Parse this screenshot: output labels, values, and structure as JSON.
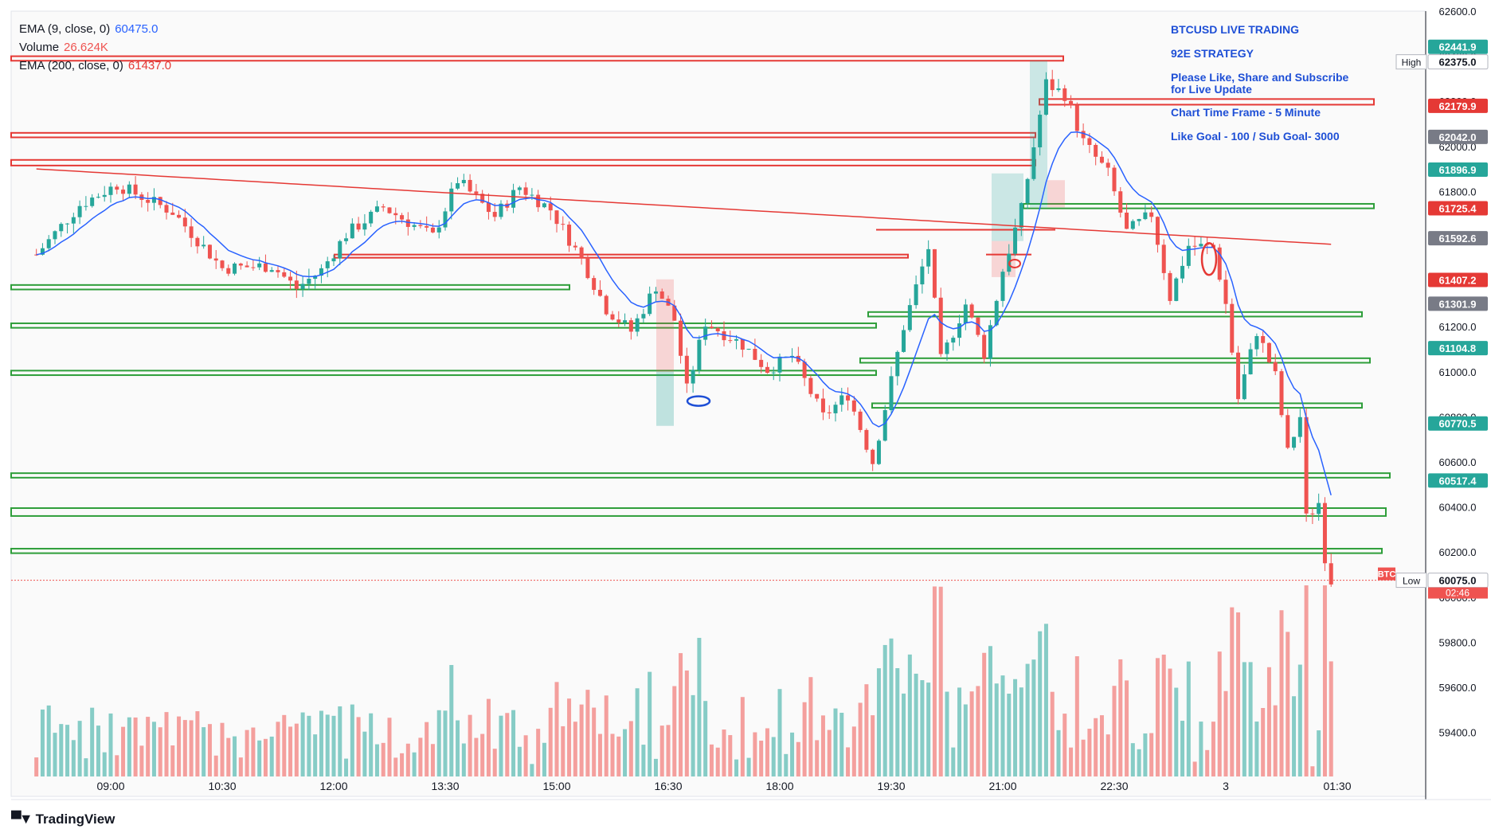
{
  "legend": {
    "ema9_label": "EMA (9, close, 0)",
    "ema9_value": "60475.0",
    "volume_label": "Volume",
    "volume_value": "26.624K",
    "ema200_label": "EMA (200, close, 0)",
    "ema200_value": "61437.0"
  },
  "overlay": {
    "line1": "BTCUSD LIVE TRADING",
    "line2": "92E  STRATEGY",
    "line3": "Please Like, Share and Subscribe",
    "line4": "for Live Update",
    "line5": "Chart Time Frame - 5 Minute",
    "line6": "Like Goal - 100 / Sub Goal- 3000"
  },
  "brand": {
    "name": "TradingView"
  },
  "colors": {
    "up": "#26a69a",
    "down": "#ef5350",
    "ema9": "#2962ff",
    "ema200": "#e53935",
    "zone_red": "#e53935",
    "zone_green": "#2e9e3a"
  },
  "chart_data": {
    "type": "candlestick",
    "symbol": "BTCUSD",
    "timeframe": "5 Minute",
    "x_ticks": [
      "09:00",
      "10:30",
      "12:00",
      "13:30",
      "15:00",
      "16:30",
      "18:00",
      "19:30",
      "21:00",
      "22:30",
      "3",
      "01:30"
    ],
    "y_ticks": [
      59400,
      59600,
      59800,
      60000,
      60200,
      60400,
      60600,
      60800,
      61000,
      61200,
      61400,
      61600,
      61800,
      62000,
      62200,
      62400,
      62600
    ],
    "ylim": [
      59240,
      62600
    ],
    "price_labels": [
      {
        "text": "62441.9",
        "price": 62441.9,
        "color": "#26a69a"
      },
      {
        "text": "62375.0",
        "price": 62375.0,
        "color": "#ffffff",
        "tag": "High"
      },
      {
        "text": "62179.9",
        "price": 62179.9,
        "color": "#e53935"
      },
      {
        "text": "62042.0",
        "price": 62042.0,
        "color": "#787b86"
      },
      {
        "text": "61896.9",
        "price": 61896.9,
        "color": "#26a69a"
      },
      {
        "text": "61725.4",
        "price": 61725.4,
        "color": "#e53935"
      },
      {
        "text": "61592.6",
        "price": 61592.6,
        "color": "#787b86"
      },
      {
        "text": "61407.2",
        "price": 61407.2,
        "color": "#e53935"
      },
      {
        "text": "61301.9",
        "price": 61301.9,
        "color": "#787b86"
      },
      {
        "text": "61104.8",
        "price": 61104.8,
        "color": "#26a69a"
      },
      {
        "text": "60770.5",
        "price": 60770.5,
        "color": "#26a69a"
      },
      {
        "text": "60517.4",
        "price": 60517.4,
        "color": "#26a69a"
      },
      {
        "text": "60075.0",
        "price": 60075.0,
        "color": "#ffffff",
        "tag": "Low"
      }
    ],
    "last_price_label": {
      "text": "BTC",
      "timer": "02:46",
      "price": 60075.0
    },
    "candles_ohlc_anchor": [
      {
        "t": "08:00",
        "p": 61520
      },
      {
        "t": "08:35",
        "p": 61740
      },
      {
        "t": "09:05",
        "p": 61830
      },
      {
        "t": "09:50",
        "p": 61710
      },
      {
        "t": "10:30",
        "p": 61460
      },
      {
        "t": "11:10",
        "p": 61470
      },
      {
        "t": "11:30",
        "p": 61370
      },
      {
        "t": "11:50",
        "p": 61450
      },
      {
        "t": "12:10",
        "p": 61610
      },
      {
        "t": "12:40",
        "p": 61730
      },
      {
        "t": "13:20",
        "p": 61600
      },
      {
        "t": "13:40",
        "p": 61850
      },
      {
        "t": "14:10",
        "p": 61690
      },
      {
        "t": "14:30",
        "p": 61820
      },
      {
        "t": "14:55",
        "p": 61720
      },
      {
        "t": "15:20",
        "p": 61500
      },
      {
        "t": "15:40",
        "p": 61280
      },
      {
        "t": "16:00",
        "p": 61180
      },
      {
        "t": "16:20",
        "p": 61380
      },
      {
        "t": "16:35",
        "p": 61230
      },
      {
        "t": "16:45",
        "p": 60920
      },
      {
        "t": "17:00",
        "p": 61220
      },
      {
        "t": "17:30",
        "p": 61120
      },
      {
        "t": "17:50",
        "p": 61010
      },
      {
        "t": "18:10",
        "p": 61070
      },
      {
        "t": "18:35",
        "p": 60800
      },
      {
        "t": "18:55",
        "p": 60900
      },
      {
        "t": "19:15",
        "p": 60600
      },
      {
        "t": "19:40",
        "p": 61200
      },
      {
        "t": "20:00",
        "p": 61550
      },
      {
        "t": "20:10",
        "p": 61050
      },
      {
        "t": "20:30",
        "p": 61300
      },
      {
        "t": "20:45",
        "p": 61080
      },
      {
        "t": "21:00",
        "p": 61450
      },
      {
        "t": "21:15",
        "p": 61720
      },
      {
        "t": "21:35",
        "p": 62280
      },
      {
        "t": "21:50",
        "p": 62230
      },
      {
        "t": "22:05",
        "p": 62020
      },
      {
        "t": "22:25",
        "p": 61880
      },
      {
        "t": "22:40",
        "p": 61620
      },
      {
        "t": "23:00",
        "p": 61700
      },
      {
        "t": "23:15",
        "p": 61330
      },
      {
        "t": "23:30",
        "p": 61560
      },
      {
        "t": "23:50",
        "p": 61550
      },
      {
        "t": "00:00",
        "p": 61300
      },
      {
        "t": "00:10",
        "p": 60880
      },
      {
        "t": "00:25",
        "p": 61180
      },
      {
        "t": "00:40",
        "p": 60980
      },
      {
        "t": "00:50",
        "p": 60640
      },
      {
        "t": "01:00",
        "p": 60800
      },
      {
        "t": "01:05",
        "p": 60350
      },
      {
        "t": "01:15",
        "p": 60420
      },
      {
        "t": "01:20",
        "p": 60180
      },
      {
        "t": "01:25",
        "p": 60075
      }
    ],
    "ema9_last": 60475.0,
    "ema200_last": 61437.0,
    "volume_last": "26.624K"
  }
}
